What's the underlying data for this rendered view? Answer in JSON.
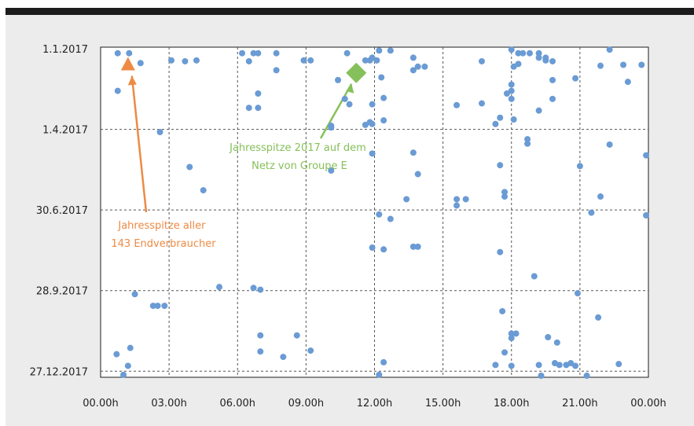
{
  "chart_data": {
    "type": "scatter",
    "title": "",
    "xlabel": "",
    "ylabel": "",
    "x_unit": "hour of day",
    "y_unit": "day of year 2017",
    "xlim": [
      0,
      24
    ],
    "ylim": [
      0,
      365
    ],
    "x_ticks": [
      {
        "value": 0,
        "label": "00.00h"
      },
      {
        "value": 3,
        "label": "03.00h"
      },
      {
        "value": 6,
        "label": "06.00h"
      },
      {
        "value": 9,
        "label": "09.00h"
      },
      {
        "value": 12,
        "label": "12.00h"
      },
      {
        "value": 15,
        "label": "15.00h"
      },
      {
        "value": 18,
        "label": "18.00h"
      },
      {
        "value": 21,
        "label": "21.00h"
      },
      {
        "value": 24,
        "label": "00.00h"
      }
    ],
    "y_ticks": [
      {
        "value": 0,
        "label": "1.1.2017"
      },
      {
        "value": 90,
        "label": "1.4.2017"
      },
      {
        "value": 180,
        "label": "30.6.2017"
      },
      {
        "value": 270,
        "label": "28.9.2017"
      },
      {
        "value": 360,
        "label": "27.12.2017"
      }
    ],
    "grid": true,
    "series": [
      {
        "name": "",
        "color": "#6a9bd4",
        "marker": "circle",
        "points": [
          [
            0.75,
            5
          ],
          [
            1.25,
            5
          ],
          [
            1.75,
            16
          ],
          [
            0.75,
            47
          ],
          [
            2.6,
            93
          ],
          [
            4.2,
            13
          ],
          [
            3.7,
            14
          ],
          [
            3.1,
            13
          ],
          [
            3.9,
            132
          ],
          [
            4.5,
            158
          ],
          [
            6.2,
            5
          ],
          [
            6.5,
            14
          ],
          [
            6.7,
            5
          ],
          [
            6.9,
            5
          ],
          [
            7.7,
            5
          ],
          [
            7.7,
            24
          ],
          [
            6.5,
            66
          ],
          [
            6.9,
            66
          ],
          [
            6.9,
            50
          ],
          [
            8.9,
            13
          ],
          [
            9.2,
            13
          ],
          [
            10.1,
            86
          ],
          [
            10.1,
            88
          ],
          [
            10.8,
            5
          ],
          [
            10.4,
            35
          ],
          [
            10.7,
            56
          ],
          [
            10.9,
            62
          ],
          [
            11.6,
            13
          ],
          [
            11.8,
            13
          ],
          [
            11.9,
            10
          ],
          [
            11.9,
            62
          ],
          [
            11.6,
            85
          ],
          [
            11.8,
            82
          ],
          [
            11.9,
            84
          ],
          [
            12.2,
            2
          ],
          [
            12.7,
            2
          ],
          [
            12.3,
            32
          ],
          [
            12.4,
            55
          ],
          [
            12.4,
            80
          ],
          [
            12.1,
            13
          ],
          [
            13.7,
            24
          ],
          [
            13.7,
            10
          ],
          [
            13.9,
            20
          ],
          [
            14.2,
            20
          ],
          [
            13.7,
            116
          ],
          [
            13.9,
            140
          ],
          [
            11.9,
            117
          ],
          [
            10.1,
            136
          ],
          [
            13.4,
            168
          ],
          [
            12.2,
            185
          ],
          [
            12.7,
            190
          ],
          [
            11.9,
            222
          ],
          [
            12.4,
            224
          ],
          [
            13.7,
            221
          ],
          [
            13.9,
            221
          ],
          [
            15.6,
            63
          ],
          [
            16.7,
            14
          ],
          [
            16.7,
            61
          ],
          [
            15.6,
            168
          ],
          [
            15.6,
            175
          ],
          [
            16.0,
            168
          ],
          [
            17.3,
            84
          ],
          [
            17.5,
            77
          ],
          [
            17.8,
            50
          ],
          [
            17.7,
            160
          ],
          [
            17.7,
            165
          ],
          [
            17.5,
            227
          ],
          [
            17.5,
            130
          ],
          [
            18.0,
            1
          ],
          [
            18.3,
            5
          ],
          [
            18.3,
            17
          ],
          [
            18.5,
            5
          ],
          [
            18.8,
            5
          ],
          [
            19.2,
            10
          ],
          [
            18.1,
            20
          ],
          [
            18.0,
            40
          ],
          [
            18.0,
            47
          ],
          [
            18.0,
            56
          ],
          [
            18.1,
            79
          ],
          [
            18.7,
            101
          ],
          [
            18.7,
            106
          ],
          [
            19.0,
            254
          ],
          [
            19.2,
            5
          ],
          [
            19.5,
            13
          ],
          [
            19.8,
            14
          ],
          [
            19.8,
            35
          ],
          [
            19.8,
            56
          ],
          [
            19.2,
            69
          ],
          [
            19.5,
            10
          ],
          [
            17.6,
            293
          ],
          [
            18.0,
            318
          ],
          [
            18.2,
            318
          ],
          [
            18.0,
            323
          ],
          [
            19.6,
            322
          ],
          [
            20.0,
            328
          ],
          [
            17.7,
            339
          ],
          [
            18.0,
            354
          ],
          [
            17.3,
            353
          ],
          [
            19.2,
            353
          ],
          [
            19.9,
            351
          ],
          [
            20.1,
            353
          ],
          [
            20.4,
            353
          ],
          [
            20.6,
            351
          ],
          [
            20.8,
            354
          ],
          [
            20.8,
            33
          ],
          [
            20.9,
            273
          ],
          [
            21.0,
            131
          ],
          [
            21.5,
            183
          ],
          [
            21.9,
            165
          ],
          [
            21.8,
            300
          ],
          [
            21.9,
            19
          ],
          [
            22.3,
            1
          ],
          [
            22.3,
            107
          ],
          [
            22.7,
            352
          ],
          [
            22.9,
            18
          ],
          [
            23.1,
            37
          ],
          [
            23.7,
            18
          ],
          [
            23.9,
            119
          ],
          [
            23.9,
            186
          ],
          [
            1.3,
            334
          ],
          [
            1.0,
            364
          ],
          [
            1.5,
            274
          ],
          [
            2.3,
            287
          ],
          [
            2.5,
            287
          ],
          [
            2.8,
            287
          ],
          [
            5.2,
            266
          ],
          [
            6.7,
            267
          ],
          [
            7.0,
            269
          ],
          [
            7.0,
            320
          ],
          [
            7.0,
            338
          ],
          [
            8.6,
            320
          ],
          [
            9.2,
            337
          ],
          [
            8.0,
            344
          ],
          [
            1.2,
            354
          ],
          [
            0.7,
            341
          ],
          [
            12.4,
            350
          ],
          [
            12.2,
            364
          ],
          [
            21.3,
            365
          ],
          [
            19.3,
            365
          ]
        ]
      }
    ],
    "highlights": [
      {
        "name": "Jahresspitze aller 143 Endverbraucher",
        "marker": "triangle",
        "color": "#ee8a44",
        "x": 1.2,
        "y": 18
      },
      {
        "name": "Jahresspitze 2017 auf dem Netz von Groupe E",
        "marker": "diamond",
        "color": "#86c05a",
        "x": 11.2,
        "y": 27
      }
    ],
    "annotations": [
      {
        "id": "ann-orange",
        "lines": [
          "Jahresspitze aller",
          "143 Endverbraucher"
        ],
        "color": "#ee8a44"
      },
      {
        "id": "ann-green",
        "lines": [
          "Jahresspitze 2017 auf dem",
          "Netz von Groupe E"
        ],
        "color": "#86c05a"
      }
    ]
  }
}
